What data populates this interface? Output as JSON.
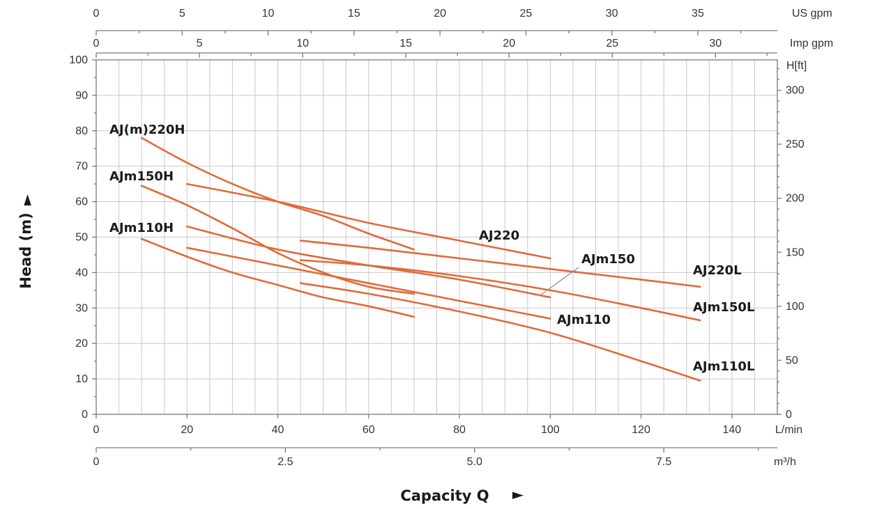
{
  "chart_data": {
    "type": "line",
    "x_axis": {
      "label": "L/min",
      "range": [
        0,
        150
      ],
      "ticks": [
        0,
        20,
        40,
        60,
        80,
        100,
        120,
        140
      ]
    },
    "y_axis": {
      "label": "Head (m)",
      "range": [
        0,
        100
      ],
      "ticks": [
        0,
        10,
        20,
        30,
        40,
        50,
        60,
        70,
        80,
        90,
        100
      ]
    },
    "secondary_axes": {
      "us_gpm": {
        "label": "US gpm",
        "ticks": [
          0,
          5,
          10,
          15,
          20,
          25,
          30,
          35
        ]
      },
      "imp_gpm": {
        "label": "Imp gpm",
        "ticks": [
          0,
          5,
          10,
          15,
          20,
          25,
          30
        ]
      },
      "ft": {
        "label": "H[ft]",
        "ticks": [
          0,
          50,
          100,
          150,
          200,
          250,
          300
        ]
      },
      "m3h": {
        "label": "m³/h",
        "ticks": [
          "0",
          "2.5",
          "5.0",
          "7.5"
        ]
      }
    },
    "xlabel": "Capacity Q",
    "ylabel": "Head (m)",
    "arrow": "►",
    "grid": true,
    "color": "#e06a3a",
    "series": [
      {
        "name": "AJ(m)220H",
        "x": [
          10,
          20,
          30,
          40,
          50,
          60,
          70
        ],
        "y": [
          78,
          71,
          65,
          60,
          56,
          51,
          46.5
        ]
      },
      {
        "name": "AJ220",
        "x": [
          20,
          40,
          60,
          80,
          100
        ],
        "y": [
          65,
          60,
          54,
          49,
          44
        ]
      },
      {
        "name": "AJ220L",
        "x": [
          45,
          60,
          80,
          100,
          120,
          133
        ],
        "y": [
          49,
          47,
          44,
          41,
          38,
          36
        ]
      },
      {
        "name": "AJm150H",
        "x": [
          10,
          20,
          30,
          40,
          50,
          60,
          70
        ],
        "y": [
          64.5,
          59,
          52.5,
          45.5,
          40,
          36,
          34
        ]
      },
      {
        "name": "AJm150",
        "x": [
          20,
          40,
          60,
          80,
          100
        ],
        "y": [
          53,
          46.5,
          42,
          38,
          33
        ]
      },
      {
        "name": "AJm150L",
        "x": [
          45,
          60,
          80,
          100,
          120,
          133
        ],
        "y": [
          43.5,
          42,
          39,
          35,
          30,
          26.5
        ]
      },
      {
        "name": "AJm110H",
        "x": [
          10,
          20,
          30,
          40,
          50,
          60,
          70
        ],
        "y": [
          49.5,
          44.5,
          40,
          36.5,
          33,
          30.5,
          27.5
        ]
      },
      {
        "name": "AJm110",
        "x": [
          20,
          40,
          60,
          80,
          100
        ],
        "y": [
          47,
          42,
          37,
          32,
          27
        ]
      },
      {
        "name": "AJm110L",
        "x": [
          45,
          60,
          80,
          100,
          120,
          133
        ],
        "y": [
          37,
          34,
          29,
          23,
          15,
          9.5
        ]
      }
    ],
    "annotations": [
      {
        "text": "AJ(m)220H"
      },
      {
        "text": "AJm150H"
      },
      {
        "text": "AJm110H"
      },
      {
        "text": "AJ220"
      },
      {
        "text": "AJm150"
      },
      {
        "text": "AJ220L"
      },
      {
        "text": "AJm150L"
      },
      {
        "text": "AJm110"
      },
      {
        "text": "AJm110L"
      }
    ]
  }
}
